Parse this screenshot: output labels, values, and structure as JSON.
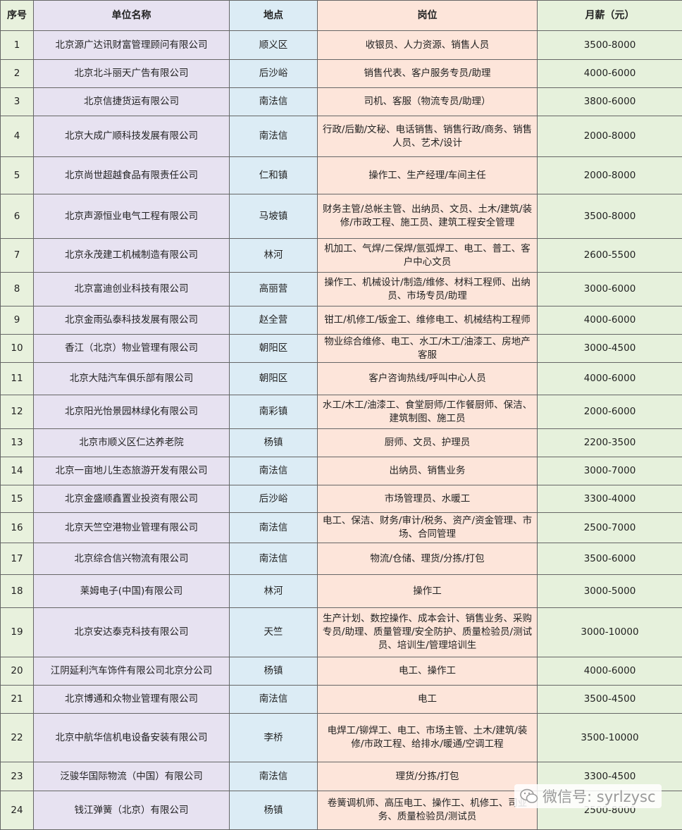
{
  "table": {
    "header": [
      "序号",
      "单位名称",
      "地点",
      "岗位",
      "月薪（元）"
    ],
    "rows": [
      [
        "1",
        "北京源广达讯财富管理顾问有限公司",
        "顺义区",
        "收银员、人力资源、销售人员",
        "3500-8000"
      ],
      [
        "2",
        "北京北斗丽天广告有限公司",
        "后沙峪",
        "销售代表、客户服务专员/助理",
        "4000-6000"
      ],
      [
        "3",
        "北京信捷货运有限公司",
        "南法信",
        "司机、客服（物流专员/助理）",
        "3800-6000"
      ],
      [
        "4",
        "北京大成广顺科技发展有限公司",
        "南法信",
        "行政/后勤/文秘、电话销售、销售行政/商务、销售人员、艺术/设计",
        "2000-8000"
      ],
      [
        "5",
        "北京尚世超越食品有限责任公司",
        "仁和镇",
        "操作工、生产经理/车间主任",
        "2000-8000"
      ],
      [
        "6",
        "北京声源恒业电气工程有限公司",
        "马坡镇",
        "财务主管/总帐主管、出纳员、文员、土木/建筑/装修/市政工程、施工员、建筑工程安全管理",
        "3500-8000"
      ],
      [
        "7",
        "北京永茂建工机械制造有限公司",
        "林河",
        "机加工、气焊/二保焊/氩弧焊工、电工、普工、客户中心文员",
        "2600-5500"
      ],
      [
        "8",
        "北京富迪创业科技有限公司",
        "高丽营",
        "操作工、机械设计/制造/维修、材料工程师、出纳员、市场专员/助理",
        "3000-6000"
      ],
      [
        "9",
        "北京金雨弘泰科技发展有限公司",
        "赵全营",
        "钳工/机修工/钣金工、维修电工、机械结构工程师",
        "4000-6000"
      ],
      [
        "10",
        "香江（北京）物业管理有限公司",
        "朝阳区",
        "物业综合维修、电工、水工/木工/油漆工、房地产客服",
        "3000-4500"
      ],
      [
        "11",
        "北京大陆汽车俱乐部有限公司",
        "朝阳区",
        "客户咨询热线/呼叫中心人员",
        "4000-6000"
      ],
      [
        "12",
        "北京阳光怡景园林绿化有限公司",
        "南彩镇",
        "水工/木工/油漆工、食堂厨师/工作餐厨师、保洁、建筑制图、施工员",
        "2000-6000"
      ],
      [
        "13",
        "北京市顺义区仁达养老院",
        "杨镇",
        "厨师、文员、护理员",
        "2200-3500"
      ],
      [
        "14",
        "北京一亩地儿生态旅游开发有限公司",
        "南法信",
        "出纳员、销售业务",
        "3000-7000"
      ],
      [
        "15",
        "北京金盛顺鑫置业投资有限公司",
        "后沙峪",
        "市场管理员、水暖工",
        "3300-4000"
      ],
      [
        "16",
        "北京天竺空港物业管理有限公司",
        "南法信",
        "电工、保洁、财务/审计/税务、资产/资金管理、市场、合同管理",
        "2500-7000"
      ],
      [
        "17",
        "北京综合信兴物流有限公司",
        "南法信",
        "物流/仓储、理货/分拣/打包",
        "3500-6000"
      ],
      [
        "18",
        "莱姆电子(中国)有限公司",
        "林河",
        "操作工",
        "3000-5000"
      ],
      [
        "19",
        "北京安达泰克科技有限公司",
        "天竺",
        "生产计划、数控操作、成本会计、销售业务、采购专员/助理、质量管理/安全防护、质量检验员/测试员、培训生/管理培训生",
        "3000-10000"
      ],
      [
        "20",
        "江阴延利汽车饰件有限公司北京分公司",
        "杨镇",
        "电工、操作工",
        "4000-6000"
      ],
      [
        "21",
        "北京博通和众物业管理有限公司",
        "南法信",
        "电工",
        "3500-4500"
      ],
      [
        "22",
        "北京中航华信机电设备安装有限公司",
        "李桥",
        "电焊工/铆焊工、电工、市场主管、土木/建筑/装修/市政工程、给排水/暖通/空调工程",
        "3500-10000"
      ],
      [
        "23",
        "泛骏华国际物流（中国）有限公司",
        "南法信",
        "理货/分拣/打包",
        "3300-4500"
      ],
      [
        "24",
        "钱江弹簧（北京）有限公司",
        "杨镇",
        "卷簧调机师、高压电工、操作工、机修工、司业务、质量检验员/测试员",
        "2500-8000"
      ]
    ]
  },
  "watermark": "微信号: syrlzysc"
}
